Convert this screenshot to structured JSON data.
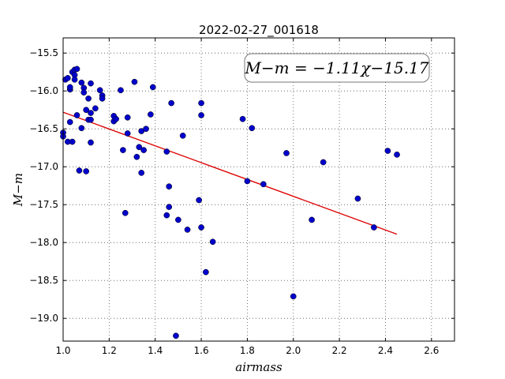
{
  "chart_data": {
    "type": "scatter",
    "title": "2022-02-27_001618",
    "xlabel": "airmass",
    "ylabel": "M−m",
    "xlim": [
      1.0,
      2.7
    ],
    "ylim": [
      -19.3,
      -15.3
    ],
    "xticks": [
      1.0,
      1.2,
      1.4,
      1.6,
      1.8,
      2.0,
      2.2,
      2.4,
      2.6
    ],
    "xtick_labels": [
      "1.0",
      "1.2",
      "1.4",
      "1.6",
      "1.8",
      "2.0",
      "2.2",
      "2.4",
      "2.6"
    ],
    "yticks": [
      -15.5,
      -16.0,
      -16.5,
      -17.0,
      -17.5,
      -18.0,
      -18.5,
      -19.0
    ],
    "ytick_labels": [
      "−15.5",
      "−16.0",
      "−16.5",
      "−17.0",
      "−17.5",
      "−18.0",
      "−18.5",
      "−19.0"
    ],
    "grid": true,
    "annotation": "M−m = −1.11χ−15.17",
    "colors": {
      "points": "#0000cc",
      "fit_line": "#dd0000"
    },
    "fit_line": {
      "slope": -1.11,
      "intercept": -15.17,
      "x_range": [
        1.0,
        2.45
      ]
    },
    "points": [
      {
        "x": 1.0,
        "y": -16.55
      },
      {
        "x": 1.0,
        "y": -16.6
      },
      {
        "x": 1.01,
        "y": -15.85
      },
      {
        "x": 1.02,
        "y": -15.83
      },
      {
        "x": 1.02,
        "y": -16.67
      },
      {
        "x": 1.03,
        "y": -15.98
      },
      {
        "x": 1.03,
        "y": -15.95
      },
      {
        "x": 1.03,
        "y": -16.41
      },
      {
        "x": 1.04,
        "y": -15.75
      },
      {
        "x": 1.04,
        "y": -16.67
      },
      {
        "x": 1.05,
        "y": -15.72
      },
      {
        "x": 1.05,
        "y": -15.79
      },
      {
        "x": 1.05,
        "y": -15.85
      },
      {
        "x": 1.06,
        "y": -15.71
      },
      {
        "x": 1.06,
        "y": -16.32
      },
      {
        "x": 1.07,
        "y": -17.05
      },
      {
        "x": 1.08,
        "y": -16.49
      },
      {
        "x": 1.08,
        "y": -15.89
      },
      {
        "x": 1.09,
        "y": -15.96
      },
      {
        "x": 1.09,
        "y": -16.02
      },
      {
        "x": 1.1,
        "y": -16.25
      },
      {
        "x": 1.1,
        "y": -17.06
      },
      {
        "x": 1.11,
        "y": -16.38
      },
      {
        "x": 1.11,
        "y": -16.1
      },
      {
        "x": 1.12,
        "y": -16.38
      },
      {
        "x": 1.12,
        "y": -16.29
      },
      {
        "x": 1.12,
        "y": -15.9
      },
      {
        "x": 1.12,
        "y": -16.68
      },
      {
        "x": 1.14,
        "y": -16.23
      },
      {
        "x": 1.16,
        "y": -15.99
      },
      {
        "x": 1.17,
        "y": -16.06
      },
      {
        "x": 1.17,
        "y": -16.1
      },
      {
        "x": 1.22,
        "y": -16.33
      },
      {
        "x": 1.22,
        "y": -16.4
      },
      {
        "x": 1.23,
        "y": -16.37
      },
      {
        "x": 1.25,
        "y": -15.99
      },
      {
        "x": 1.26,
        "y": -16.78
      },
      {
        "x": 1.27,
        "y": -17.61
      },
      {
        "x": 1.28,
        "y": -16.56
      },
      {
        "x": 1.28,
        "y": -16.35
      },
      {
        "x": 1.31,
        "y": -15.88
      },
      {
        "x": 1.32,
        "y": -16.87
      },
      {
        "x": 1.33,
        "y": -16.74
      },
      {
        "x": 1.34,
        "y": -16.53
      },
      {
        "x": 1.34,
        "y": -17.08
      },
      {
        "x": 1.35,
        "y": -16.78
      },
      {
        "x": 1.36,
        "y": -16.5
      },
      {
        "x": 1.38,
        "y": -16.31
      },
      {
        "x": 1.39,
        "y": -15.95
      },
      {
        "x": 1.45,
        "y": -16.8
      },
      {
        "x": 1.45,
        "y": -17.64
      },
      {
        "x": 1.46,
        "y": -17.26
      },
      {
        "x": 1.46,
        "y": -17.53
      },
      {
        "x": 1.47,
        "y": -16.16
      },
      {
        "x": 1.49,
        "y": -19.23
      },
      {
        "x": 1.5,
        "y": -17.7
      },
      {
        "x": 1.52,
        "y": -16.59
      },
      {
        "x": 1.54,
        "y": -17.83
      },
      {
        "x": 1.59,
        "y": -17.44
      },
      {
        "x": 1.6,
        "y": -16.32
      },
      {
        "x": 1.6,
        "y": -16.16
      },
      {
        "x": 1.6,
        "y": -17.8
      },
      {
        "x": 1.62,
        "y": -18.39
      },
      {
        "x": 1.65,
        "y": -17.99
      },
      {
        "x": 1.78,
        "y": -16.37
      },
      {
        "x": 1.8,
        "y": -17.19
      },
      {
        "x": 1.82,
        "y": -16.49
      },
      {
        "x": 1.87,
        "y": -17.23
      },
      {
        "x": 1.97,
        "y": -16.82
      },
      {
        "x": 2.0,
        "y": -18.71
      },
      {
        "x": 2.08,
        "y": -17.7
      },
      {
        "x": 2.13,
        "y": -16.94
      },
      {
        "x": 2.28,
        "y": -17.42
      },
      {
        "x": 2.35,
        "y": -17.8
      },
      {
        "x": 2.41,
        "y": -16.79
      },
      {
        "x": 2.45,
        "y": -16.84
      }
    ]
  }
}
